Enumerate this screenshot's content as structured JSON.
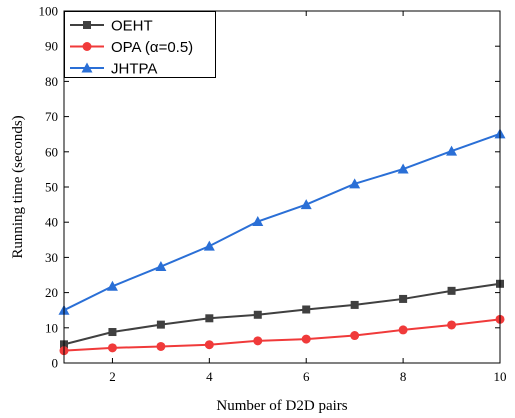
{
  "chart_data": {
    "type": "line",
    "xlabel": "Number of D2D pairs",
    "ylabel": "Running time (seconds)",
    "xlim": [
      1,
      10
    ],
    "ylim": [
      0,
      100
    ],
    "x_ticks": [
      2,
      4,
      6,
      8,
      10
    ],
    "y_ticks": [
      0,
      10,
      20,
      30,
      40,
      50,
      60,
      70,
      80,
      90,
      100
    ],
    "x_tick_labels": [
      "2",
      "4",
      "6",
      "8",
      "10"
    ],
    "y_tick_labels": [
      "0",
      "10",
      "20",
      "30",
      "40",
      "50",
      "60",
      "70",
      "80",
      "90",
      "100"
    ],
    "x": [
      1,
      2,
      3,
      4,
      5,
      6,
      7,
      8,
      9,
      10
    ],
    "grid": false,
    "legend": "top-left",
    "series": [
      {
        "name": "OEHT",
        "color": "#404040",
        "marker": "square",
        "values": [
          5.3,
          8.8,
          10.9,
          12.7,
          13.7,
          15.2,
          16.5,
          18.2,
          20.5,
          22.5
        ]
      },
      {
        "name": "OPA (α=0.5)",
        "color": "#f03a3a",
        "marker": "circle",
        "values": [
          3.5,
          4.3,
          4.7,
          5.2,
          6.3,
          6.8,
          7.8,
          9.4,
          10.8,
          12.4
        ]
      },
      {
        "name": "JHTPA",
        "color": "#2a6fd6",
        "marker": "triangle",
        "values": [
          15.0,
          21.8,
          27.4,
          33.2,
          40.2,
          45.0,
          50.9,
          55.1,
          60.2,
          65.1
        ]
      }
    ]
  }
}
